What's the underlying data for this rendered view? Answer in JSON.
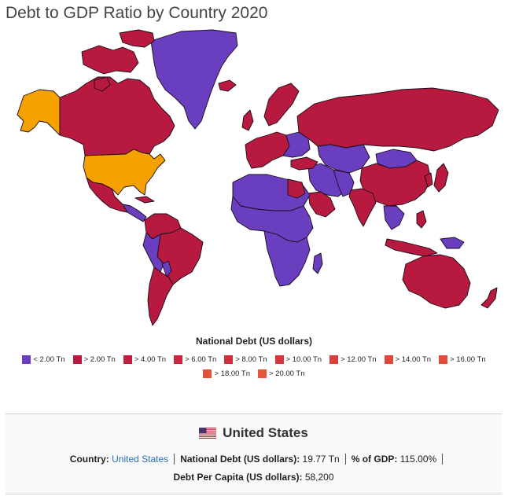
{
  "title": "Debt to GDP Ratio by Country 2020",
  "colors": {
    "purple": "#6a3fbf",
    "crimson": "#b8193f",
    "orange": "#f5a200",
    "salmon": "#e0553a"
  },
  "legend": {
    "title": "National Debt (US dollars)",
    "items": [
      {
        "label": "< 2.00 Tn",
        "color": "#6a3fbf"
      },
      {
        "label": "> 2.00 Tn",
        "color": "#b8193f"
      },
      {
        "label": "> 4.00 Tn",
        "color": "#c0203f"
      },
      {
        "label": "> 6.00 Tn",
        "color": "#c8283e"
      },
      {
        "label": "> 8.00 Tn",
        "color": "#cf303d"
      },
      {
        "label": "> 10.00 Tn",
        "color": "#d5383c"
      },
      {
        "label": "> 12.00 Tn",
        "color": "#da403b"
      },
      {
        "label": "> 14.00 Tn",
        "color": "#de473b"
      },
      {
        "label": "> 16.00 Tn",
        "color": "#e04d3a"
      },
      {
        "label": "> 18.00 Tn",
        "color": "#e2523a"
      },
      {
        "label": "> 20.00 Tn",
        "color": "#e4573a"
      }
    ]
  },
  "selected": {
    "flag_icon": "us-flag-icon",
    "name": "United States",
    "country_label": "Country:",
    "country_value": "United States",
    "debt_label": "National Debt (US dollars):",
    "debt_value": "19.77 Tn",
    "gdp_label": "% of GDP:",
    "gdp_value": "115.00%",
    "capita_label": "Debt Per Capita (US dollars):",
    "capita_value": "58,200"
  }
}
